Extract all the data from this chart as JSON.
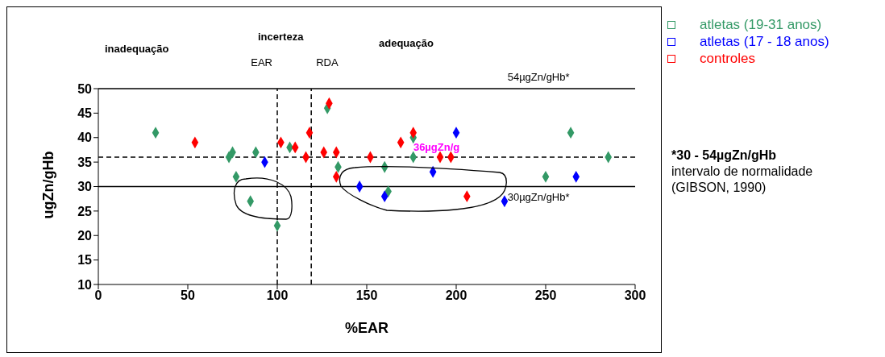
{
  "chart_data": {
    "type": "scatter",
    "xlabel": "%EAR",
    "ylabel": "ugZn/gHb",
    "xlim": [
      0,
      300
    ],
    "xticks": [
      0,
      50,
      100,
      150,
      200,
      250,
      300
    ],
    "ylim": [
      10,
      50
    ],
    "yticks": [
      10,
      15,
      20,
      25,
      30,
      35,
      40,
      45,
      50
    ],
    "marker": "diamond",
    "grid": false,
    "legend": "top right",
    "series": [
      {
        "name": "atletas (19-31 anos)",
        "color": "#339966",
        "x": [
          32,
          75,
          73,
          77,
          88,
          85,
          100,
          107,
          128,
          134,
          160,
          162,
          176,
          176,
          250,
          264,
          285
        ],
        "values": [
          41,
          37,
          36,
          32,
          37,
          27,
          22,
          38,
          46,
          34,
          34,
          29,
          40,
          36,
          32,
          41,
          36
        ]
      },
      {
        "name": "atletas (17 - 18 anos)",
        "color": "#0000ff",
        "x": [
          93,
          146,
          160,
          187,
          200,
          227,
          267
        ],
        "values": [
          35,
          30,
          28,
          33,
          41,
          27,
          32
        ]
      },
      {
        "name": "controles",
        "color": "#ff0000",
        "x": [
          54,
          102,
          110,
          118,
          116,
          129,
          126,
          133,
          133,
          152,
          169,
          176,
          191,
          197,
          206
        ],
        "values": [
          39,
          39,
          38,
          41,
          36,
          47,
          37,
          37,
          32,
          36,
          39,
          41,
          36,
          36,
          28
        ]
      }
    ],
    "ref_lines": [
      {
        "axis": "y",
        "value": 50,
        "label": "54µgZn/gHb*",
        "color": "#000000",
        "line_style": "solid"
      },
      {
        "axis": "y",
        "value": 36,
        "label": "36µgZn/g",
        "color": "#000000",
        "line_style": "dashed"
      },
      {
        "axis": "y",
        "value": 30,
        "label": "30µgZn/gHb*",
        "color": "#000000",
        "line_style": "solid"
      },
      {
        "axis": "x",
        "value": 100,
        "label": "EAR",
        "color": "#000000",
        "line_style": "dashed"
      },
      {
        "axis": "x",
        "value": 119,
        "label": "RDA",
        "color": "#000000",
        "line_style": "dashed"
      }
    ],
    "annotations": [
      "inadequação",
      "incerteza",
      "adequação",
      "*30 - 54µgZn/gHb",
      "intervalo de normalidade (GIBSON, 1990)"
    ]
  }
}
